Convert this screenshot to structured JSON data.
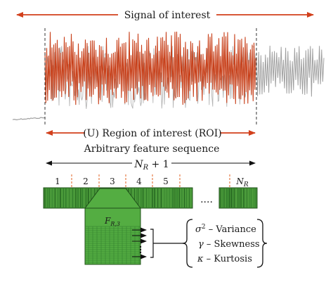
{
  "diagram": {
    "signal_label": "Signal of interest",
    "roi_label": "(U) Region of interest (ROI)",
    "feature_seq_label": "Arbitrary feature sequence",
    "nr_plus_one": {
      "main": "N",
      "sub": "R",
      "suffix": " + 1"
    },
    "segment_labels": [
      "1",
      "2",
      "3",
      "4",
      "5"
    ],
    "last_segment_label": {
      "main": "N",
      "sub": "R"
    },
    "dots": "....",
    "frame_label": {
      "main": "F",
      "sub": "R,3"
    },
    "features": [
      {
        "symbol": "σ",
        "sup": "2",
        "name": " – Variance"
      },
      {
        "symbol": "γ",
        "sup": "",
        "name": " – Skewness"
      },
      {
        "symbol": "κ",
        "sup": "",
        "name": " – Kurtosis"
      }
    ]
  },
  "colors": {
    "roi_signal": "#c8401a",
    "raw_signal": "#9e9e9e",
    "arrow_red": "#d2401c",
    "segment_green": "#4a9a3a",
    "segment_dark": "#1f5e1c",
    "frame_green": "#54ad42",
    "divider_orange": "#e06020"
  }
}
